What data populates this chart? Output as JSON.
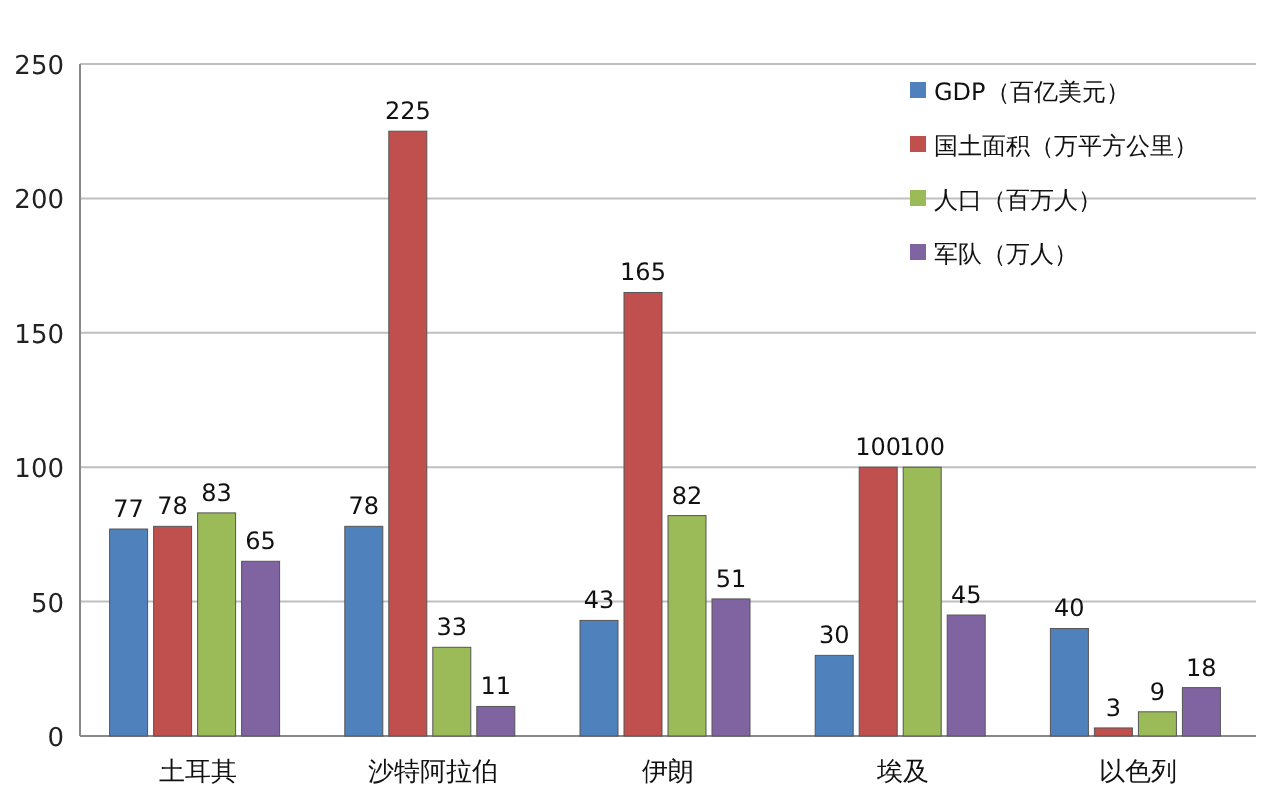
{
  "chart_data": {
    "type": "bar",
    "categories": [
      "土耳其",
      "沙特阿拉伯",
      "伊朗",
      "埃及",
      "以色列"
    ],
    "series": [
      {
        "name": "GDP（百亿美元）",
        "color": "#4f81bd",
        "values": [
          77,
          78,
          43,
          30,
          40
        ]
      },
      {
        "name": "国土面积（万平方公里）",
        "color": "#c0504d",
        "values": [
          78,
          225,
          165,
          100,
          3
        ]
      },
      {
        "name": "人口（百万人）",
        "color": "#9bbb59",
        "values": [
          83,
          33,
          82,
          100,
          9
        ]
      },
      {
        "name": "军队（万人）",
        "color": "#8064a2",
        "values": [
          65,
          11,
          51,
          45,
          18
        ]
      }
    ],
    "ylim": [
      0,
      250
    ],
    "yticks": [
      0,
      50,
      100,
      150,
      200,
      250
    ],
    "grid": "y",
    "legend": "top right",
    "data_labels": true
  }
}
